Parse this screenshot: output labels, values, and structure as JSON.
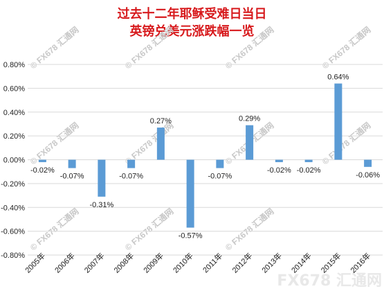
{
  "title_lines": [
    "过去十二年耶稣受难日当日",
    "英镑兑美元涨跌幅一览"
  ],
  "watermark": "FX678 汇通网",
  "brand_logo_text": "FX678 汇通网",
  "colors": {
    "bar": "#5b9bd5",
    "title": "#d7191c",
    "grid": "#d9d9d9"
  },
  "chart_data": {
    "type": "bar",
    "title": "过去十二年耶稣受难日当日 英镑兑美元涨跌幅一览",
    "categories": [
      "2005年",
      "2006年",
      "2007年",
      "2008年",
      "2009年",
      "2010年",
      "2011年",
      "2012年",
      "2013年",
      "2014年",
      "2015年",
      "2016年"
    ],
    "values": [
      -0.02,
      -0.07,
      -0.31,
      -0.07,
      0.27,
      -0.57,
      -0.07,
      0.29,
      -0.02,
      -0.02,
      0.64,
      -0.06
    ],
    "value_labels": [
      "-0.02%",
      "-0.07%",
      "-0.31%",
      "-0.07%",
      "0.27%",
      "-0.57%",
      "-0.07%",
      "0.29%",
      "-0.02%",
      "-0.02%",
      "0.64%",
      "-0.06%"
    ],
    "ylim": [
      -0.8,
      0.8
    ],
    "yticks": [
      "0.80%",
      "0.60%",
      "0.40%",
      "0.20%",
      "0.00%",
      "-0.20%",
      "-0.40%",
      "-0.60%",
      "-0.80%"
    ],
    "ytick_values": [
      0.8,
      0.6,
      0.4,
      0.2,
      0,
      -0.2,
      -0.4,
      -0.6,
      -0.8
    ],
    "xlabel": "",
    "ylabel": "",
    "grid": true,
    "legend": "none"
  }
}
